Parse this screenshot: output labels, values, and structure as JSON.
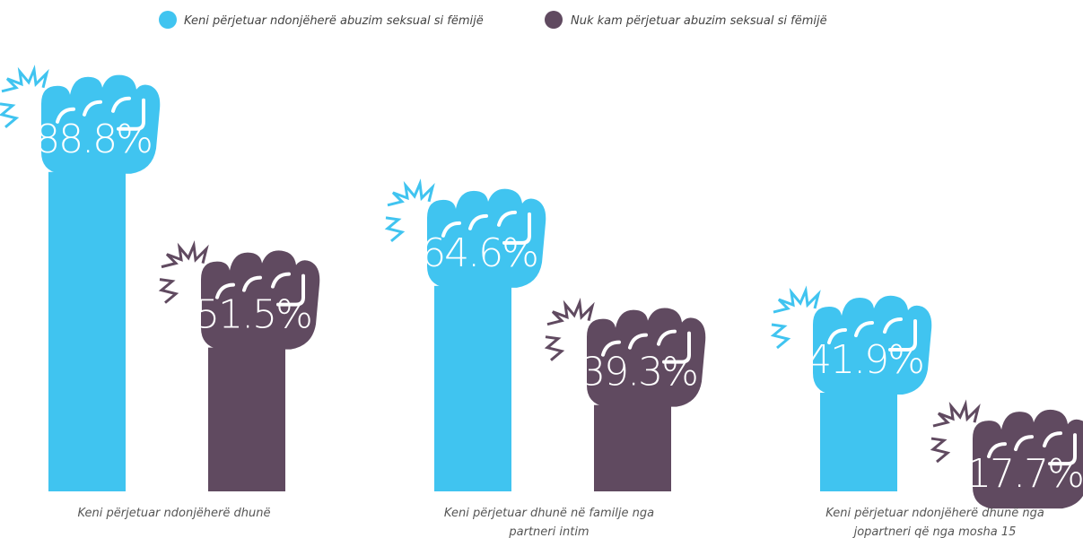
{
  "chart_data": {
    "type": "bar",
    "categories": [
      [
        "Keni përjetuar ndonjëherë dhunë"
      ],
      [
        "Keni përjetuar dhunë në familje nga",
        "partneri intim"
      ],
      [
        "Keni përjetuar ndonjëherë dhunë nga",
        "jopartneri që nga mosha 15"
      ]
    ],
    "series": [
      {
        "name": "Keni përjetuar ndonjëherë abuzim seksual si fëmijë",
        "color": "#40c4f0",
        "values": [
          88.8,
          64.6,
          41.9
        ],
        "labels": [
          "88.8%",
          "64.6%",
          "41.9%"
        ]
      },
      {
        "name": "Nuk kam përjetuar abuzim seksual si fëmijë",
        "color": "#604a60",
        "values": [
          51.5,
          39.3,
          17.7
        ],
        "labels": [
          "51.5%",
          "39.3%",
          "17.7%"
        ]
      }
    ],
    "unit": "%",
    "legend_position": "top"
  }
}
